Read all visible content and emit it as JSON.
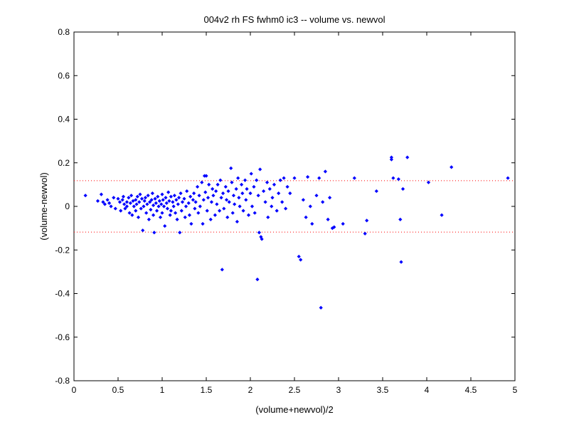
{
  "chart_data": {
    "type": "scatter",
    "title": "004v2 rh FS fwhm0 ic3 -- volume vs. newvol",
    "xlabel": "(volume+newvol)/2",
    "ylabel": "(volume-newvol)",
    "xlim": [
      0,
      5
    ],
    "ylim": [
      -0.8,
      0.8
    ],
    "xticks": [
      "0",
      "0.5",
      "1",
      "1.5",
      "2",
      "2.5",
      "3",
      "3.5",
      "4",
      "4.5",
      "5"
    ],
    "yticks": [
      "0.8",
      "0.6",
      "0.4",
      "0.2",
      "0",
      "-0.2",
      "-0.4",
      "-0.6",
      "-0.8"
    ],
    "grid": false,
    "point_color": "#0000ff",
    "reference_line_color": "#ff0000",
    "reference_lines": [
      0.118,
      -0.118
    ],
    "series": [
      {
        "points": [
          [
            0.13,
            0.05
          ],
          [
            0.27,
            0.025
          ],
          [
            0.31,
            0.055
          ],
          [
            0.33,
            0.02
          ],
          [
            0.35,
            0.01
          ],
          [
            0.38,
            0.03
          ],
          [
            0.4,
            0.015
          ],
          [
            0.42,
            0.0
          ],
          [
            0.45,
            0.04
          ],
          [
            0.47,
            -0.01
          ],
          [
            0.5,
            0.035
          ],
          [
            0.52,
            0.02
          ],
          [
            0.53,
            -0.02
          ],
          [
            0.55,
            0.03
          ],
          [
            0.56,
            0.045
          ],
          [
            0.57,
            0.01
          ],
          [
            0.58,
            -0.01
          ],
          [
            0.6,
            0.02
          ],
          [
            0.6,
            0.0
          ],
          [
            0.62,
            0.04
          ],
          [
            0.63,
            -0.03
          ],
          [
            0.64,
            0.015
          ],
          [
            0.65,
            0.05
          ],
          [
            0.66,
            -0.04
          ],
          [
            0.67,
            0.025
          ],
          [
            0.68,
            0.0
          ],
          [
            0.7,
            0.03
          ],
          [
            0.7,
            -0.02
          ],
          [
            0.71,
            0.01
          ],
          [
            0.72,
            0.045
          ],
          [
            0.73,
            -0.05
          ],
          [
            0.74,
            0.02
          ],
          [
            0.75,
            0.055
          ],
          [
            0.76,
            -0.01
          ],
          [
            0.77,
            0.035
          ],
          [
            0.78,
            -0.11
          ],
          [
            0.79,
            0.0
          ],
          [
            0.8,
            0.025
          ],
          [
            0.81,
            0.04
          ],
          [
            0.82,
            -0.03
          ],
          [
            0.83,
            0.01
          ],
          [
            0.84,
            0.05
          ],
          [
            0.85,
            -0.06
          ],
          [
            0.86,
            0.02
          ],
          [
            0.87,
            -0.015
          ],
          [
            0.88,
            0.03
          ],
          [
            0.89,
            0.06
          ],
          [
            0.9,
            -0.04
          ],
          [
            0.9,
            0.005
          ],
          [
            0.91,
            -0.12
          ],
          [
            0.92,
            0.035
          ],
          [
            0.93,
            0.015
          ],
          [
            0.94,
            -0.02
          ],
          [
            0.95,
            0.045
          ],
          [
            0.96,
            0.0
          ],
          [
            0.97,
            0.025
          ],
          [
            0.98,
            -0.05
          ],
          [
            0.99,
            0.01
          ],
          [
            1.0,
            0.055
          ],
          [
            1.0,
            -0.03
          ],
          [
            1.01,
            0.03
          ],
          [
            1.02,
            0.0
          ],
          [
            1.03,
            -0.09
          ],
          [
            1.04,
            0.04
          ],
          [
            1.05,
            0.015
          ],
          [
            1.06,
            -0.01
          ],
          [
            1.07,
            0.065
          ],
          [
            1.08,
            0.025
          ],
          [
            1.09,
            -0.04
          ],
          [
            1.1,
            0.045
          ],
          [
            1.1,
            -0.02
          ],
          [
            1.12,
            0.02
          ],
          [
            1.13,
            0.0
          ],
          [
            1.14,
            0.05
          ],
          [
            1.15,
            -0.03
          ],
          [
            1.16,
            0.03
          ],
          [
            1.17,
            -0.06
          ],
          [
            1.18,
            0.01
          ],
          [
            1.19,
            0.04
          ],
          [
            1.2,
            -0.12
          ],
          [
            1.21,
            0.06
          ],
          [
            1.22,
            -0.02
          ],
          [
            1.23,
            0.02
          ],
          [
            1.25,
            0.035
          ],
          [
            1.26,
            -0.05
          ],
          [
            1.27,
            0.0
          ],
          [
            1.28,
            0.07
          ],
          [
            1.3,
            0.015
          ],
          [
            1.31,
            -0.04
          ],
          [
            1.32,
            0.045
          ],
          [
            1.33,
            -0.08
          ],
          [
            1.35,
            0.03
          ],
          [
            1.36,
            0.06
          ],
          [
            1.37,
            -0.01
          ],
          [
            1.38,
            0.02
          ],
          [
            1.4,
            0.09
          ],
          [
            1.41,
            -0.03
          ],
          [
            1.42,
            0.05
          ],
          [
            1.43,
            0.0
          ],
          [
            1.45,
            0.11
          ],
          [
            1.46,
            -0.08
          ],
          [
            1.47,
            0.03
          ],
          [
            1.48,
            0.14
          ],
          [
            1.49,
            0.065
          ],
          [
            1.5,
            0.14
          ],
          [
            1.51,
            -0.02
          ],
          [
            1.52,
            0.04
          ],
          [
            1.53,
            0.1
          ],
          [
            1.55,
            -0.06
          ],
          [
            1.56,
            0.02
          ],
          [
            1.57,
            0.08
          ],
          [
            1.58,
            0.05
          ],
          [
            1.6,
            -0.04
          ],
          [
            1.61,
            0.07
          ],
          [
            1.62,
            0.01
          ],
          [
            1.63,
            0.1
          ],
          [
            1.65,
            -0.02
          ],
          [
            1.66,
            0.12
          ],
          [
            1.67,
            0.04
          ],
          [
            1.68,
            -0.29
          ],
          [
            1.69,
            0.06
          ],
          [
            1.7,
            -0.01
          ],
          [
            1.72,
            0.09
          ],
          [
            1.73,
            0.03
          ],
          [
            1.74,
            -0.05
          ],
          [
            1.75,
            0.07
          ],
          [
            1.76,
            0.02
          ],
          [
            1.78,
            0.175
          ],
          [
            1.79,
            0.11
          ],
          [
            1.8,
            -0.03
          ],
          [
            1.81,
            0.05
          ],
          [
            1.82,
            0.01
          ],
          [
            1.84,
            0.08
          ],
          [
            1.85,
            -0.07
          ],
          [
            1.86,
            0.13
          ],
          [
            1.87,
            0.04
          ],
          [
            1.88,
            0.0
          ],
          [
            1.9,
            0.1
          ],
          [
            1.91,
            0.06
          ],
          [
            1.92,
            -0.02
          ],
          [
            1.94,
            0.12
          ],
          [
            1.95,
            0.03
          ],
          [
            1.96,
            0.08
          ],
          [
            1.98,
            -0.04
          ],
          [
            2.0,
            0.06
          ],
          [
            2.01,
            0.15
          ],
          [
            2.02,
            0.0
          ],
          [
            2.04,
            0.09
          ],
          [
            2.05,
            -0.03
          ],
          [
            2.07,
            0.12
          ],
          [
            2.08,
            -0.335
          ],
          [
            2.09,
            0.05
          ],
          [
            2.1,
            -0.12
          ],
          [
            2.11,
            0.17
          ],
          [
            2.12,
            -0.14
          ],
          [
            2.13,
            -0.15
          ],
          [
            2.15,
            0.07
          ],
          [
            2.17,
            0.02
          ],
          [
            2.19,
            0.11
          ],
          [
            2.2,
            -0.05
          ],
          [
            2.22,
            0.08
          ],
          [
            2.24,
            0.0
          ],
          [
            2.25,
            0.04
          ],
          [
            2.27,
            0.1
          ],
          [
            2.3,
            -0.02
          ],
          [
            2.32,
            0.06
          ],
          [
            2.34,
            0.12
          ],
          [
            2.36,
            0.02
          ],
          [
            2.38,
            0.13
          ],
          [
            2.4,
            -0.01
          ],
          [
            2.42,
            0.09
          ],
          [
            2.45,
            0.06
          ],
          [
            2.5,
            0.13
          ],
          [
            2.55,
            -0.23
          ],
          [
            2.57,
            -0.245
          ],
          [
            2.6,
            0.03
          ],
          [
            2.63,
            -0.05
          ],
          [
            2.65,
            0.135
          ],
          [
            2.68,
            0.0
          ],
          [
            2.7,
            -0.08
          ],
          [
            2.75,
            0.05
          ],
          [
            2.78,
            0.13
          ],
          [
            2.8,
            -0.465
          ],
          [
            2.82,
            0.02
          ],
          [
            2.85,
            0.16
          ],
          [
            2.88,
            -0.06
          ],
          [
            2.9,
            0.04
          ],
          [
            2.93,
            -0.1
          ],
          [
            2.95,
            -0.095
          ],
          [
            3.05,
            -0.08
          ],
          [
            3.18,
            0.13
          ],
          [
            3.3,
            -0.125
          ],
          [
            3.32,
            -0.065
          ],
          [
            3.43,
            0.07
          ],
          [
            3.6,
            0.215
          ],
          [
            3.6,
            0.225
          ],
          [
            3.62,
            0.13
          ],
          [
            3.68,
            0.125
          ],
          [
            3.7,
            -0.06
          ],
          [
            3.71,
            -0.255
          ],
          [
            3.73,
            0.08
          ],
          [
            3.78,
            0.225
          ],
          [
            4.02,
            0.11
          ],
          [
            4.17,
            -0.04
          ],
          [
            4.28,
            0.18
          ],
          [
            4.92,
            0.13
          ]
        ]
      }
    ]
  }
}
